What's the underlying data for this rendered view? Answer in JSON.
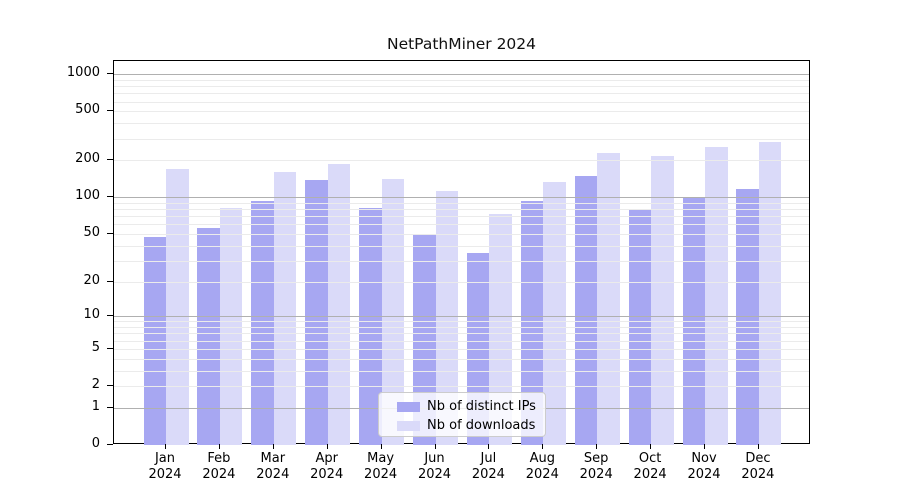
{
  "title": "NetPathMiner 2024",
  "colors": {
    "background": "#ffffff",
    "axis": "#000000",
    "text": "#111111",
    "grid_major": "#b0b0b0",
    "grid_minor": "#ebebeb",
    "legend_border": "#cccccc",
    "legend_background": "rgba(255,255,255,0.8)",
    "bar_distinct_ips": "#a7a7f2",
    "bar_downloads": "#dadaf9"
  },
  "chart_data": {
    "type": "bar",
    "title": "NetPathMiner 2024",
    "xlabel": "",
    "ylabel": "",
    "x_tick_months": [
      "Jan",
      "Feb",
      "Mar",
      "Apr",
      "May",
      "Jun",
      "Jul",
      "Aug",
      "Sep",
      "Oct",
      "Nov",
      "Dec"
    ],
    "x_tick_year": "2024",
    "y_ticks": [
      0,
      1,
      2,
      5,
      10,
      20,
      50,
      100,
      200,
      500,
      1000
    ],
    "y_scale": "log10(1+value)",
    "ylim": [
      0,
      1290
    ],
    "grid": "horizontal major and minor lines, drawn over bars",
    "legend_position": "lower center inside plot",
    "series": [
      {
        "name": "Nb of distinct IPs",
        "color": "#a7a7f2",
        "values": [
          47,
          56,
          93,
          138,
          82,
          50,
          35,
          93,
          150,
          80,
          100,
          116
        ]
      },
      {
        "name": "Nb of downloads",
        "color": "#dadaf9",
        "values": [
          170,
          81,
          160,
          188,
          142,
          112,
          73,
          132,
          230,
          215,
          257,
          282
        ]
      }
    ]
  }
}
